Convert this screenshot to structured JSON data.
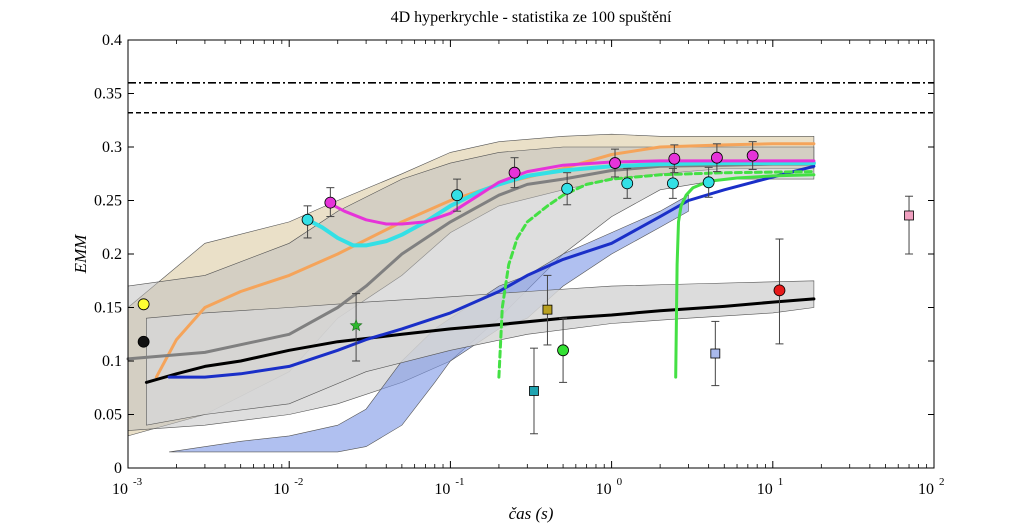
{
  "chart_data": {
    "type": "line",
    "title": "4D hyperkrychle - statistika ze 100 spuštění",
    "xlabel": "čas (s)",
    "ylabel": "EMM",
    "xscale": "log",
    "xlim": [
      0.001,
      100
    ],
    "ylim": [
      0,
      0.4
    ],
    "xticks": [
      {
        "base": "10",
        "exp": "-3",
        "value": 0.001
      },
      {
        "base": "10",
        "exp": "-2",
        "value": 0.01
      },
      {
        "base": "10",
        "exp": "-1",
        "value": 0.1
      },
      {
        "base": "10",
        "exp": "0",
        "value": 1
      },
      {
        "base": "10",
        "exp": "1",
        "value": 10
      },
      {
        "base": "10",
        "exp": "2",
        "value": 100
      }
    ],
    "yticks": [
      "0",
      "0.05",
      "0.1",
      "0.15",
      "0.2",
      "0.25",
      "0.3",
      "0.35",
      "0.4"
    ],
    "yticks_values": [
      0,
      0.05,
      0.1,
      0.15,
      0.2,
      0.25,
      0.3,
      0.35,
      0.4
    ],
    "reference_lines": [
      {
        "name": "upper-reference",
        "y": 0.36,
        "style": "dashdot",
        "color": "#000000"
      },
      {
        "name": "lower-reference",
        "y": 0.332,
        "style": "dashed",
        "color": "#000000"
      }
    ],
    "bands": [
      {
        "name": "tan-band",
        "color": "#d8c79a",
        "opacity": 0.55,
        "x": [
          0.001,
          0.003,
          0.01,
          0.02,
          0.05,
          0.1,
          0.2,
          0.5,
          1,
          2,
          5,
          10,
          18
        ],
        "upper": [
          0.15,
          0.21,
          0.23,
          0.25,
          0.275,
          0.295,
          0.305,
          0.31,
          0.312,
          0.31,
          0.31,
          0.31,
          0.31
        ],
        "lower": [
          0.03,
          0.05,
          0.09,
          0.14,
          0.18,
          0.22,
          0.245,
          0.26,
          0.27,
          0.275,
          0.28,
          0.28,
          0.28
        ]
      },
      {
        "name": "gray-band",
        "color": "#bdbdbd",
        "opacity": 0.5,
        "x": [
          0.001,
          0.003,
          0.01,
          0.02,
          0.05,
          0.1,
          0.2,
          0.5,
          1,
          2,
          5,
          10,
          18
        ],
        "upper": [
          0.17,
          0.18,
          0.21,
          0.24,
          0.27,
          0.285,
          0.295,
          0.3,
          0.3,
          0.3,
          0.3,
          0.3,
          0.3
        ],
        "lower": [
          0.035,
          0.04,
          0.05,
          0.06,
          0.08,
          0.1,
          0.14,
          0.2,
          0.235,
          0.26,
          0.27,
          0.27,
          0.27
        ]
      },
      {
        "name": "blue-band",
        "color": "#7b96e6",
        "opacity": 0.6,
        "x": [
          0.0018,
          0.005,
          0.01,
          0.02,
          0.03,
          0.05,
          0.08,
          0.1,
          0.2,
          0.3,
          0.5,
          1,
          2,
          3
        ],
        "upper": [
          0.015,
          0.025,
          0.03,
          0.04,
          0.055,
          0.1,
          0.13,
          0.14,
          0.17,
          0.18,
          0.2,
          0.22,
          0.24,
          0.255
        ],
        "lower": [
          0.015,
          0.015,
          0.015,
          0.015,
          0.02,
          0.04,
          0.08,
          0.1,
          0.13,
          0.14,
          0.17,
          0.2,
          0.225,
          0.24
        ]
      },
      {
        "name": "black-band",
        "color": "#d6d6d6",
        "opacity": 0.85,
        "x": [
          0.0013,
          0.003,
          0.01,
          0.03,
          0.1,
          0.3,
          1,
          3,
          10,
          18
        ],
        "upper": [
          0.14,
          0.145,
          0.15,
          0.155,
          0.16,
          0.165,
          0.17,
          0.172,
          0.174,
          0.175
        ],
        "lower": [
          0.04,
          0.05,
          0.06,
          0.09,
          0.11,
          0.125,
          0.135,
          0.14,
          0.145,
          0.15
        ]
      }
    ],
    "series": [
      {
        "name": "orange-mean",
        "color": "#f5a45a",
        "width": 3,
        "x": [
          0.0015,
          0.002,
          0.003,
          0.005,
          0.01,
          0.02,
          0.05,
          0.1,
          0.2,
          0.5,
          1,
          2,
          5,
          10,
          18
        ],
        "y": [
          0.085,
          0.12,
          0.15,
          0.165,
          0.18,
          0.2,
          0.23,
          0.25,
          0.265,
          0.28,
          0.293,
          0.3,
          0.302,
          0.303,
          0.303
        ]
      },
      {
        "name": "gray-mean",
        "color": "#808080",
        "width": 3,
        "x": [
          0.001,
          0.003,
          0.01,
          0.02,
          0.03,
          0.05,
          0.1,
          0.2,
          0.3,
          0.5,
          1,
          2,
          5,
          10,
          18
        ],
        "y": [
          0.102,
          0.108,
          0.125,
          0.15,
          0.17,
          0.2,
          0.23,
          0.255,
          0.265,
          0.27,
          0.278,
          0.282,
          0.283,
          0.284,
          0.284
        ]
      },
      {
        "name": "black-mean",
        "color": "#000000",
        "width": 3,
        "x": [
          0.0013,
          0.002,
          0.003,
          0.005,
          0.01,
          0.02,
          0.05,
          0.1,
          0.2,
          0.5,
          1,
          2,
          5,
          10,
          18
        ],
        "y": [
          0.08,
          0.088,
          0.095,
          0.1,
          0.11,
          0.118,
          0.125,
          0.13,
          0.134,
          0.14,
          0.143,
          0.147,
          0.151,
          0.155,
          0.158
        ]
      },
      {
        "name": "blue-mean",
        "color": "#1a2fc8",
        "width": 3,
        "x": [
          0.0018,
          0.003,
          0.005,
          0.01,
          0.02,
          0.03,
          0.05,
          0.1,
          0.2,
          0.3,
          0.5,
          1,
          2,
          3,
          5,
          10,
          18
        ],
        "y": [
          0.085,
          0.085,
          0.088,
          0.095,
          0.11,
          0.12,
          0.13,
          0.145,
          0.165,
          0.18,
          0.195,
          0.21,
          0.235,
          0.25,
          0.26,
          0.272,
          0.282
        ]
      },
      {
        "name": "cyan-mean",
        "color": "#33e0e6",
        "width": 4,
        "x": [
          0.013,
          0.016,
          0.02,
          0.025,
          0.03,
          0.04,
          0.05,
          0.07,
          0.1,
          0.15,
          0.2,
          0.3,
          0.5,
          1,
          2,
          5,
          18
        ],
        "y": [
          0.232,
          0.225,
          0.215,
          0.208,
          0.208,
          0.212,
          0.218,
          0.23,
          0.245,
          0.258,
          0.265,
          0.273,
          0.278,
          0.282,
          0.284,
          0.285,
          0.285
        ]
      },
      {
        "name": "magenta-mean",
        "color": "#e633d9",
        "width": 3,
        "x": [
          0.018,
          0.022,
          0.03,
          0.04,
          0.05,
          0.07,
          0.1,
          0.15,
          0.2,
          0.3,
          0.5,
          1,
          2,
          5,
          18
        ],
        "y": [
          0.247,
          0.24,
          0.232,
          0.228,
          0.228,
          0.23,
          0.238,
          0.255,
          0.267,
          0.277,
          0.283,
          0.286,
          0.287,
          0.287,
          0.287
        ]
      },
      {
        "name": "green-dashed",
        "color": "#44e044",
        "width": 3,
        "dash": "6,4",
        "x": [
          0.2,
          0.21,
          0.23,
          0.26,
          0.3,
          0.4,
          0.5,
          0.7,
          1,
          2,
          5,
          18
        ],
        "y": [
          0.085,
          0.15,
          0.19,
          0.215,
          0.23,
          0.245,
          0.255,
          0.265,
          0.27,
          0.274,
          0.276,
          0.277
        ]
      },
      {
        "name": "green-solid",
        "color": "#44e044",
        "width": 3,
        "x": [
          2.5,
          2.55,
          2.6,
          2.7,
          2.9,
          3.2,
          4,
          6,
          10,
          18
        ],
        "y": [
          0.085,
          0.19,
          0.23,
          0.245,
          0.255,
          0.262,
          0.268,
          0.271,
          0.273,
          0.274
        ]
      }
    ],
    "points": [
      {
        "name": "yellow-circle",
        "shape": "circle",
        "color": "#ffff33",
        "x": 0.00125,
        "y": 0.153
      },
      {
        "name": "black-circle",
        "shape": "circle",
        "color": "#111111",
        "x": 0.00125,
        "y": 0.118
      },
      {
        "name": "green-star",
        "shape": "star",
        "color": "#2db82d",
        "x": 0.026,
        "y": 0.133,
        "err": [
          0.1,
          0.163
        ]
      },
      {
        "name": "cyan-circle-1",
        "shape": "circle",
        "color": "#33e0e6",
        "x": 0.013,
        "y": 0.232,
        "err": [
          0.215,
          0.245
        ]
      },
      {
        "name": "magenta-circle-1",
        "shape": "circle",
        "color": "#e633d9",
        "x": 0.018,
        "y": 0.248,
        "err": [
          0.235,
          0.262
        ]
      },
      {
        "name": "cyan-circle-2",
        "shape": "circle",
        "color": "#33e0e6",
        "x": 0.11,
        "y": 0.255,
        "err": [
          0.24,
          0.27
        ]
      },
      {
        "name": "magenta-circle-2",
        "shape": "circle",
        "color": "#e633d9",
        "x": 0.25,
        "y": 0.276,
        "err": [
          0.262,
          0.29
        ]
      },
      {
        "name": "teal-square",
        "shape": "square",
        "color": "#1fa3b0",
        "x": 0.33,
        "y": 0.072,
        "err": [
          0.032,
          0.112
        ]
      },
      {
        "name": "olive-square",
        "shape": "square",
        "color": "#b8a020",
        "x": 0.4,
        "y": 0.148,
        "err": [
          0.115,
          0.18
        ]
      },
      {
        "name": "green-circle",
        "shape": "circle",
        "color": "#33e033",
        "x": 0.5,
        "y": 0.11,
        "err": [
          0.08,
          0.14
        ]
      },
      {
        "name": "cyan-circle-3",
        "shape": "circle",
        "color": "#33e0e6",
        "x": 0.53,
        "y": 0.261,
        "err": [
          0.246,
          0.276
        ]
      },
      {
        "name": "magenta-circle-3",
        "shape": "circle",
        "color": "#e633d9",
        "x": 1.05,
        "y": 0.285,
        "err": [
          0.272,
          0.298
        ]
      },
      {
        "name": "cyan-circle-4",
        "shape": "circle",
        "color": "#33e0e6",
        "x": 1.25,
        "y": 0.266,
        "err": [
          0.252,
          0.28
        ]
      },
      {
        "name": "cyan-circle-5",
        "shape": "circle",
        "color": "#33e0e6",
        "x": 2.4,
        "y": 0.266,
        "err": [
          0.252,
          0.28
        ]
      },
      {
        "name": "magenta-circle-4",
        "shape": "circle",
        "color": "#e633d9",
        "x": 2.45,
        "y": 0.289,
        "err": [
          0.276,
          0.302
        ]
      },
      {
        "name": "cyan-circle-6",
        "shape": "circle",
        "color": "#33e0e6",
        "x": 4,
        "y": 0.267,
        "err": [
          0.253,
          0.281
        ]
      },
      {
        "name": "lavender-square",
        "shape": "square",
        "color": "#a9b9ec",
        "x": 4.4,
        "y": 0.107,
        "err": [
          0.077,
          0.137
        ]
      },
      {
        "name": "magenta-circle-5",
        "shape": "circle",
        "color": "#e633d9",
        "x": 4.5,
        "y": 0.29,
        "err": [
          0.277,
          0.303
        ]
      },
      {
        "name": "magenta-circle-6",
        "shape": "circle",
        "color": "#e633d9",
        "x": 7.5,
        "y": 0.292,
        "err": [
          0.279,
          0.305
        ]
      },
      {
        "name": "red-circle",
        "shape": "circle",
        "color": "#e61a1a",
        "x": 11,
        "y": 0.166,
        "err": [
          0.116,
          0.214
        ]
      },
      {
        "name": "pink-square",
        "shape": "square",
        "color": "#f0a0c0",
        "x": 70,
        "y": 0.236,
        "err": [
          0.2,
          0.254
        ]
      }
    ]
  }
}
